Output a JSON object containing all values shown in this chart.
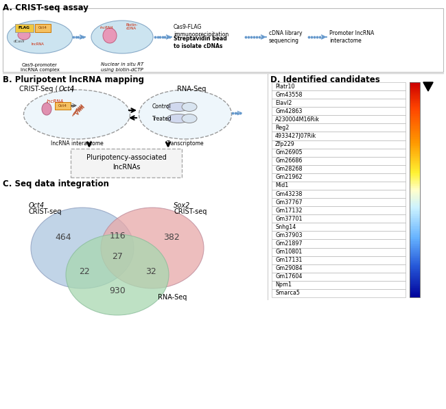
{
  "section_A_label": "A. CRIST-seq assay",
  "section_B_label": "B. Pluripotent lncRNA mapping",
  "section_C_label": "C. Seq data integration",
  "section_D_label": "D. Identified candidates",
  "venn_numbers": {
    "oct4_only": 464,
    "sox2_only": 382,
    "rna_only": 930,
    "oct4_sox2": 116,
    "oct4_rna": 22,
    "sox2_rna": 32,
    "all_three": 27
  },
  "venn_colors": {
    "oct4": "#adc6e0",
    "sox2": "#e8a8a8",
    "rna": "#a8d8b0"
  },
  "candidates": [
    "Platr10",
    "Gm43558",
    "Elavl2",
    "Gm42863",
    "A230004M16Rik",
    "Reg2",
    "4933427J07Rik",
    "Zfp229",
    "Gm26905",
    "Gm26686",
    "Gm28268",
    "Gm21962",
    "Mid1",
    "Gm43238",
    "Gm37767",
    "Gm17132",
    "Gm37701",
    "Snhg14",
    "Gm37903",
    "Gm21897",
    "Gm10801",
    "Gm17131",
    "Gm29084",
    "Gm17604",
    "Npm1",
    "Smarca5"
  ],
  "colorbar_stops": [
    [
      0.0,
      [
        0.8,
        0.0,
        0.0
      ]
    ],
    [
      0.12,
      [
        1.0,
        0.27,
        0.0
      ]
    ],
    [
      0.28,
      [
        1.0,
        0.6,
        0.0
      ]
    ],
    [
      0.42,
      [
        1.0,
        0.95,
        0.2
      ]
    ],
    [
      0.5,
      [
        1.0,
        1.0,
        0.8
      ]
    ],
    [
      0.58,
      [
        0.8,
        0.95,
        1.0
      ]
    ],
    [
      0.72,
      [
        0.4,
        0.7,
        1.0
      ]
    ],
    [
      0.85,
      [
        0.15,
        0.35,
        0.85
      ]
    ],
    [
      1.0,
      [
        0.0,
        0.0,
        0.6
      ]
    ]
  ],
  "bg": "#ffffff"
}
